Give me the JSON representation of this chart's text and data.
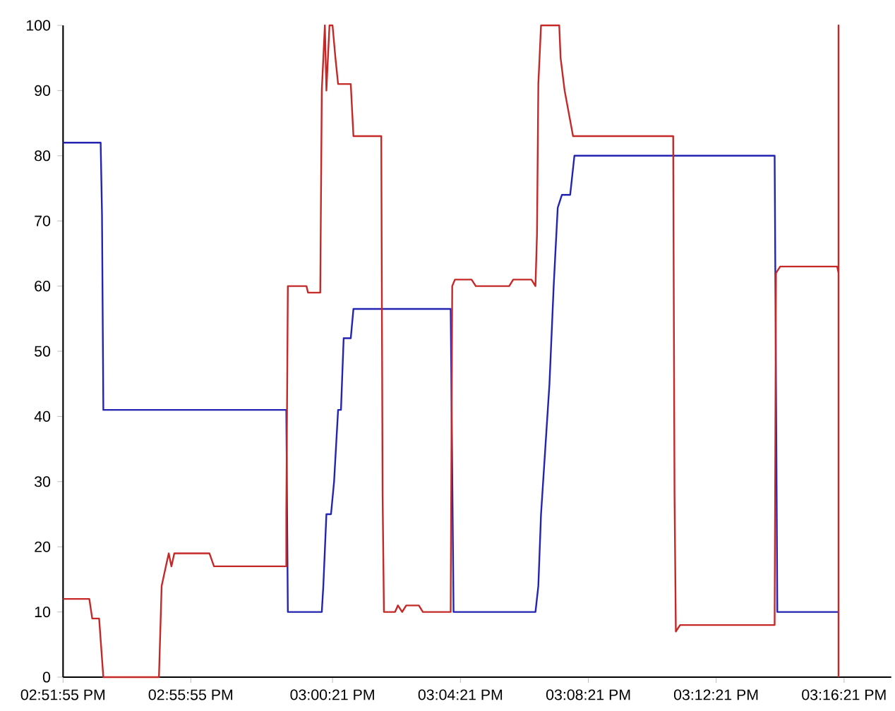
{
  "chart_data": {
    "type": "line",
    "xlim": [
      14.8653,
      15.2971
    ],
    "ylim": [
      0,
      100
    ],
    "xticks": [
      {
        "value": 14.8653,
        "label": "02:51:55 PM"
      },
      {
        "value": 14.9319,
        "label": "02:55:55 PM"
      },
      {
        "value": 15.0058,
        "label": "03:00:21 PM"
      },
      {
        "value": 15.0725,
        "label": "03:04:21 PM"
      },
      {
        "value": 15.1392,
        "label": "03:08:21 PM"
      },
      {
        "value": 15.2058,
        "label": "03:12:21 PM"
      },
      {
        "value": 15.2725,
        "label": "03:16:21 PM"
      }
    ],
    "yticks": [
      0,
      10,
      20,
      30,
      40,
      50,
      60,
      70,
      80,
      90,
      100
    ],
    "marker": "none",
    "line_style": "solid",
    "series": [
      {
        "color": "#2323b4",
        "x": [
          14.8653,
          14.8849,
          14.8856,
          14.8863,
          14.9817,
          14.9825,
          15.0002,
          15.001,
          15.0026,
          15.005,
          15.0066,
          15.0087,
          15.0102,
          15.0116,
          15.0153,
          15.0167,
          15.0674,
          15.0689,
          15.1116,
          15.1131,
          15.1145,
          15.1167,
          15.1189,
          15.1211,
          15.1232,
          15.1254,
          15.1297,
          15.1319,
          15.2363,
          15.2377,
          15.2696
        ],
        "values": [
          82,
          82,
          71,
          41,
          41,
          10,
          10,
          14,
          25,
          25,
          30,
          41,
          41,
          52,
          52,
          56.5,
          56.5,
          10,
          10,
          14,
          25,
          35,
          45,
          60,
          72,
          74,
          74,
          80,
          80,
          10,
          10
        ]
      },
      {
        "color": "#c62828",
        "x": [
          14.8653,
          14.879,
          14.8805,
          14.8841,
          14.8863,
          14.9153,
          14.916,
          14.9167,
          14.9189,
          14.9204,
          14.9218,
          14.9233,
          14.9416,
          14.944,
          14.9817,
          14.9817,
          14.9825,
          14.9922,
          14.993,
          14.9994,
          15.0002,
          15.0018,
          15.0026,
          15.0042,
          15.0058,
          15.0073,
          15.0087,
          15.0153,
          15.0167,
          15.0312,
          15.0319,
          15.0326,
          15.0384,
          15.0399,
          15.0421,
          15.0442,
          15.0508,
          15.0529,
          15.0674,
          15.0682,
          15.0696,
          15.0783,
          15.0805,
          15.0979,
          15.1,
          15.1095,
          15.1116,
          15.1124,
          15.1131,
          15.1145,
          15.124,
          15.1247,
          15.1268,
          15.1312,
          15.1834,
          15.1841,
          15.1848,
          15.187,
          15.2363,
          15.237,
          15.2392,
          15.2689,
          15.2696,
          15.2696,
          15.2696
        ],
        "values": [
          12,
          12,
          9,
          9,
          0,
          0,
          7,
          14,
          17,
          19,
          17,
          19,
          19,
          17,
          17,
          25,
          60,
          60,
          59,
          59,
          90,
          100,
          90,
          100,
          100,
          95,
          91,
          91,
          83,
          83,
          28,
          10,
          10,
          11,
          10,
          11,
          11,
          10,
          10,
          60,
          61,
          61,
          60,
          60,
          61,
          61,
          60,
          68,
          91,
          100,
          100,
          95,
          90,
          83,
          83,
          28,
          7,
          8,
          8,
          62,
          63,
          63,
          62,
          100,
          0
        ]
      }
    ]
  }
}
